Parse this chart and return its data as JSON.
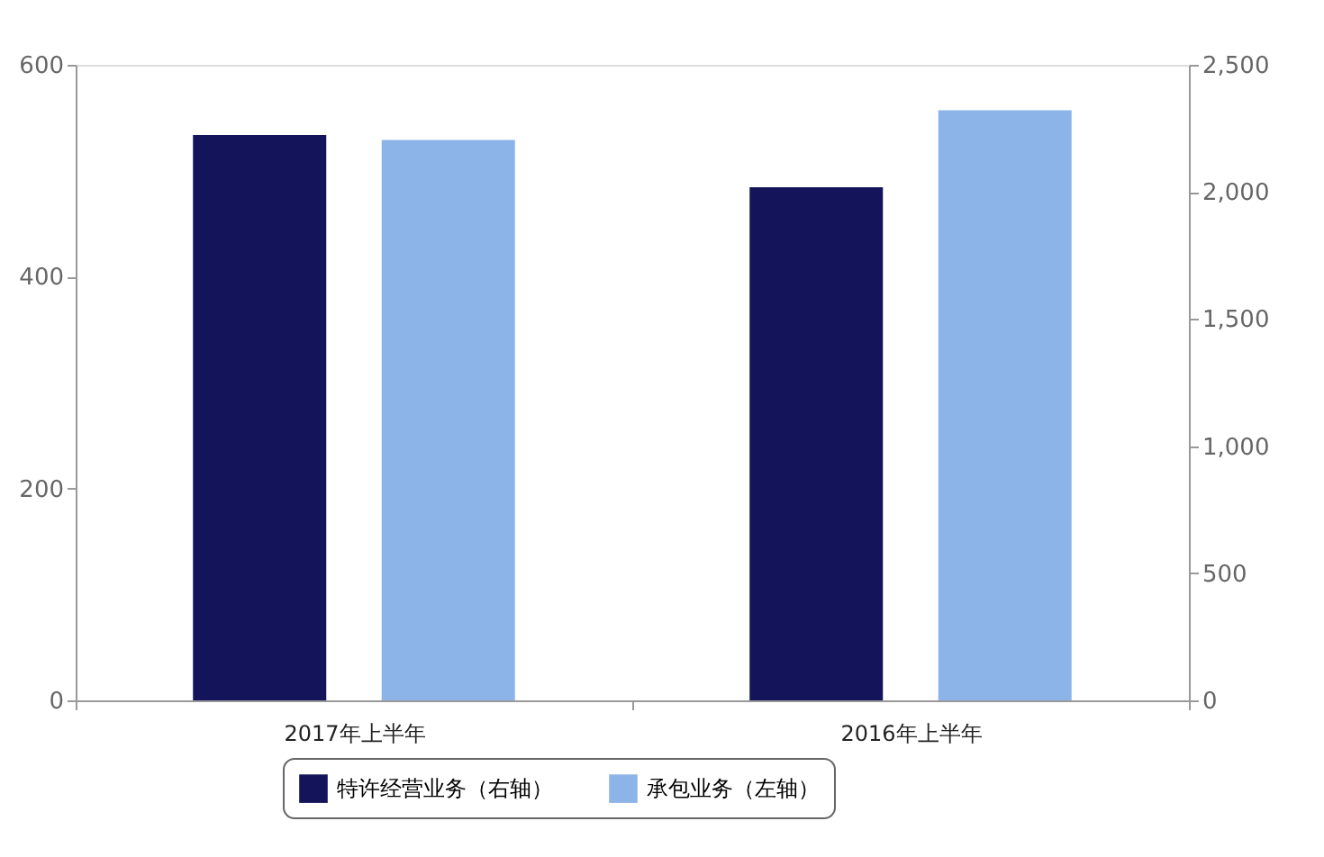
{
  "chart_data": {
    "type": "bar",
    "categories": [
      "2017年上半年",
      "2016年上半年"
    ],
    "series": [
      {
        "name": "特许经营业务（右轴）",
        "color": "#14145a",
        "axis": "y2",
        "values": [
          2224,
          2018
        ]
      },
      {
        "name": "承包业务（左轴）",
        "color": "#8db4e8",
        "axis": "y",
        "values": [
          529,
          557
        ]
      }
    ],
    "ylim": [
      0,
      600
    ],
    "yticks": [
      0,
      200,
      400,
      600
    ],
    "y2lim": [
      0,
      2500
    ],
    "y2ticks": [
      0,
      {
        "value": 500,
        "label": "500"
      },
      {
        "value": 1000,
        "label": "1,000"
      },
      {
        "value": 1500,
        "label": "1,500"
      },
      {
        "value": 2000,
        "label": "2,000"
      },
      {
        "value": 2500,
        "label": "2,500"
      }
    ],
    "grid": false,
    "legend": "bottom"
  }
}
